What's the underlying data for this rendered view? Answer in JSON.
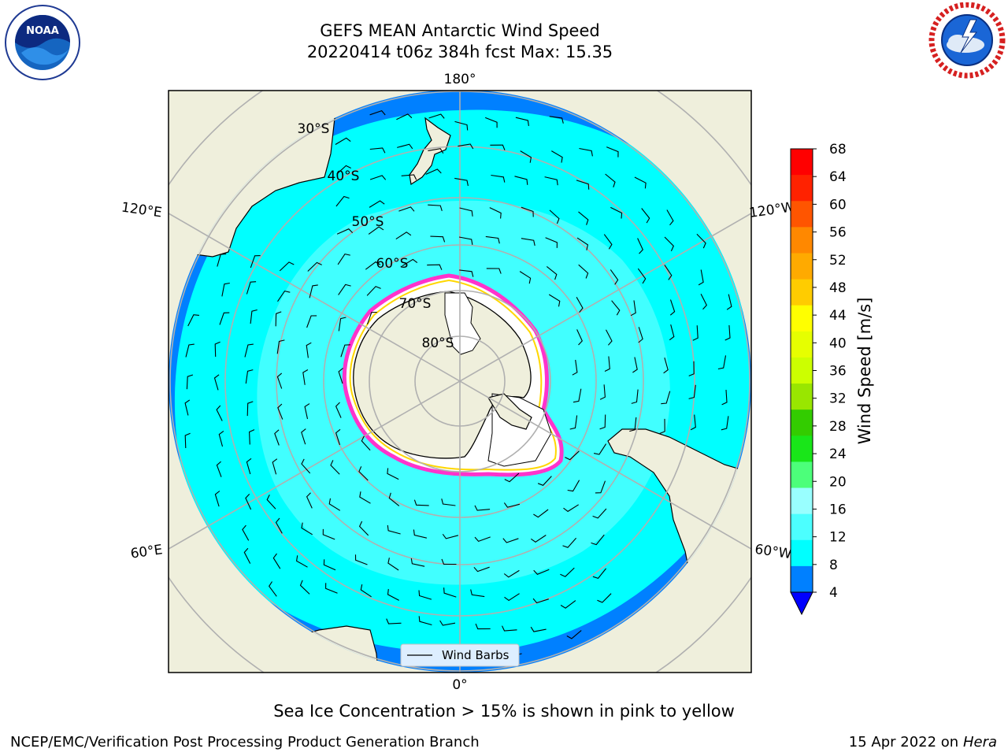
{
  "header": {
    "title_line1": "GEFS MEAN Antarctic Wind Speed",
    "title_line2": "20220414 t06z 384h fcst   Max: 15.35"
  },
  "map": {
    "projection": "south-polar-stereographic",
    "lon_labels": {
      "top": "180°",
      "bottom": "0°",
      "upper_left": "120°E",
      "upper_right": "120°W",
      "lower_left": "60°E",
      "lower_right": "60°W"
    },
    "lat_labels": [
      "30°S",
      "40°S",
      "50°S",
      "60°S",
      "70°S",
      "80°S"
    ],
    "legend_label": "Wind Barbs",
    "colors": {
      "ocean_deep_blue": "#0080ff",
      "ocean_cyan": "#00ffff",
      "ocean_light_cyan": "#4cffff",
      "land": "#efefdc",
      "ice_white": "#ffffff",
      "ice_edge_pink": "#ff33cc",
      "ice_edge_yellow": "#ffd700",
      "grid": "#b0b0b0"
    }
  },
  "colorbar": {
    "label": "Wind Speed [m/s]",
    "ticks": [
      "4",
      "8",
      "12",
      "16",
      "20",
      "24",
      "28",
      "32",
      "36",
      "40",
      "44",
      "48",
      "52",
      "56",
      "60",
      "64",
      "68"
    ],
    "colors": [
      "#0080ff",
      "#00ffff",
      "#4cffff",
      "#99ffff",
      "#4cff7a",
      "#19e619",
      "#33cc00",
      "#99e600",
      "#ccff00",
      "#e6ff00",
      "#ffff00",
      "#ffcc00",
      "#ffaa00",
      "#ff8800",
      "#ff5500",
      "#ff2200",
      "#ff0000"
    ],
    "extend_color": "#0000ff"
  },
  "footer": {
    "note": "Sea Ice Concentration > 15% is shown in pink to yellow",
    "left": "NCEP/EMC/Verification Post Processing Product Generation Branch",
    "right_prefix": "15 Apr 2022 on ",
    "right_host": "Hera"
  },
  "logos": {
    "left": "noaa-logo",
    "right": "nws-logo"
  }
}
